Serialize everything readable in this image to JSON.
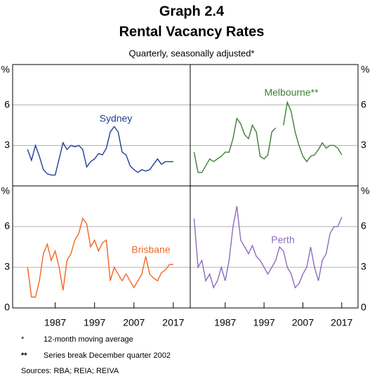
{
  "header": {
    "title": "Graph 2.4",
    "subtitle": "Rental Vacancy Rates",
    "note": "Quarterly, seasonally adjusted*"
  },
  "chart_data": [
    {
      "type": "line",
      "ylabel": "%",
      "xlim": [
        1976.2,
        2021.3
      ],
      "ylim": [
        0,
        9
      ],
      "yticks": [
        3,
        6
      ],
      "grid": true,
      "x": [
        1980,
        1981,
        1982,
        1983,
        1984,
        1985,
        1986,
        1987,
        1988,
        1989,
        1990,
        1991,
        1992,
        1993,
        1994,
        1995,
        1996,
        1997,
        1998,
        1999,
        2000,
        2001,
        2002,
        2003,
        2004,
        2005,
        2006,
        2007,
        2008,
        2009,
        2010,
        2011,
        2012,
        2013,
        2014,
        2015,
        2016,
        2017
      ],
      "series": [
        {
          "name": "Sydney",
          "color": "#1f3f95",
          "values": [
            2.7,
            1.9,
            3.0,
            2.2,
            1.2,
            0.9,
            0.8,
            0.8,
            2.0,
            3.2,
            2.7,
            3.0,
            2.9,
            3.0,
            2.7,
            1.4,
            1.8,
            2.0,
            2.4,
            2.3,
            2.8,
            4.0,
            4.4,
            4.0,
            2.5,
            2.3,
            1.5,
            1.2,
            1.0,
            1.2,
            1.1,
            1.2,
            1.6,
            2.0,
            1.6,
            1.8,
            1.8,
            1.8
          ]
        }
      ]
    },
    {
      "type": "line",
      "ylabel": "%",
      "xlim": [
        1978,
        2021.2
      ],
      "ylim": [
        0,
        9
      ],
      "yticks": [
        3,
        6
      ],
      "grid": true,
      "x": [
        1979,
        1980,
        1981,
        1982,
        1983,
        1984,
        1985,
        1986,
        1987,
        1988,
        1989,
        1990,
        1991,
        1992,
        1993,
        1994,
        1995,
        1996,
        1997,
        1998,
        1999,
        2000,
        2001,
        2002,
        2003,
        2004,
        2005,
        2006,
        2007,
        2008,
        2009,
        2010,
        2011,
        2012,
        2013,
        2014,
        2015,
        2016,
        2017
      ],
      "series": [
        {
          "name": "Melbourne**",
          "color": "#3d7f35",
          "values": [
            2.5,
            1.0,
            1.0,
            1.5,
            2.0,
            1.8,
            2.0,
            2.2,
            2.5,
            2.5,
            3.5,
            5.0,
            4.6,
            3.8,
            3.5,
            4.5,
            4.0,
            2.2,
            2.0,
            2.3,
            4.0,
            4.3,
            null,
            4.5,
            6.2,
            5.5,
            4.0,
            3.0,
            2.2,
            1.8,
            2.2,
            2.3,
            2.7,
            3.2,
            2.8,
            3.0,
            3.0,
            2.8,
            2.3
          ]
        }
      ]
    },
    {
      "type": "line",
      "ylabel": "%",
      "xlim": [
        1976.2,
        2021.3
      ],
      "ylim": [
        0,
        9
      ],
      "yticks": [
        0,
        3,
        6
      ],
      "xticks": [
        1987,
        1997,
        2007,
        2017
      ],
      "grid": true,
      "x": [
        1980,
        1981,
        1982,
        1983,
        1984,
        1985,
        1986,
        1987,
        1988,
        1989,
        1990,
        1991,
        1992,
        1993,
        1994,
        1995,
        1996,
        1997,
        1998,
        1999,
        2000,
        2001,
        2002,
        2003,
        2004,
        2005,
        2006,
        2007,
        2008,
        2009,
        2010,
        2011,
        2012,
        2013,
        2014,
        2015,
        2016,
        2017
      ],
      "series": [
        {
          "name": "Brisbane",
          "color": "#f26522",
          "values": [
            3.0,
            0.8,
            0.8,
            2.0,
            4.0,
            4.7,
            3.5,
            4.2,
            3.0,
            1.3,
            3.5,
            4.0,
            5.0,
            5.5,
            6.6,
            6.2,
            4.5,
            5.0,
            4.2,
            4.8,
            5.0,
            2.0,
            3.0,
            2.5,
            2.0,
            2.5,
            2.0,
            1.5,
            2.0,
            2.5,
            3.8,
            2.5,
            2.2,
            2.0,
            2.6,
            2.8,
            3.2,
            3.2
          ]
        }
      ]
    },
    {
      "type": "line",
      "ylabel": "%",
      "xlim": [
        1978,
        2021.2
      ],
      "ylim": [
        0,
        9
      ],
      "yticks": [
        0,
        3,
        6
      ],
      "xticks": [
        1987,
        1997,
        2007,
        2017
      ],
      "grid": true,
      "x": [
        1979,
        1980,
        1981,
        1982,
        1983,
        1984,
        1985,
        1986,
        1987,
        1988,
        1989,
        1990,
        1991,
        1992,
        1993,
        1994,
        1995,
        1996,
        1997,
        1998,
        1999,
        2000,
        2001,
        2002,
        2003,
        2004,
        2005,
        2006,
        2007,
        2008,
        2009,
        2010,
        2011,
        2012,
        2013,
        2014,
        2015,
        2016,
        2017
      ],
      "series": [
        {
          "name": "Perth",
          "color": "#8e6bbf",
          "values": [
            6.6,
            3.0,
            3.5,
            2.0,
            2.5,
            1.5,
            2.0,
            3.0,
            2.0,
            3.5,
            6.0,
            7.5,
            5.0,
            4.5,
            4.0,
            4.6,
            3.8,
            3.5,
            3.0,
            2.5,
            3.0,
            3.5,
            4.5,
            4.2,
            3.0,
            2.5,
            1.5,
            1.8,
            2.5,
            3.0,
            4.5,
            3.0,
            2.0,
            3.5,
            4.0,
            5.5,
            6.0,
            6.0,
            6.7
          ]
        }
      ]
    }
  ],
  "notes": [
    {
      "mark": "*",
      "text": "12-month moving average"
    },
    {
      "mark": "**",
      "text": "Series break December quarter 2002"
    }
  ],
  "sources": "Sources: RBA; REIA; REIVA"
}
